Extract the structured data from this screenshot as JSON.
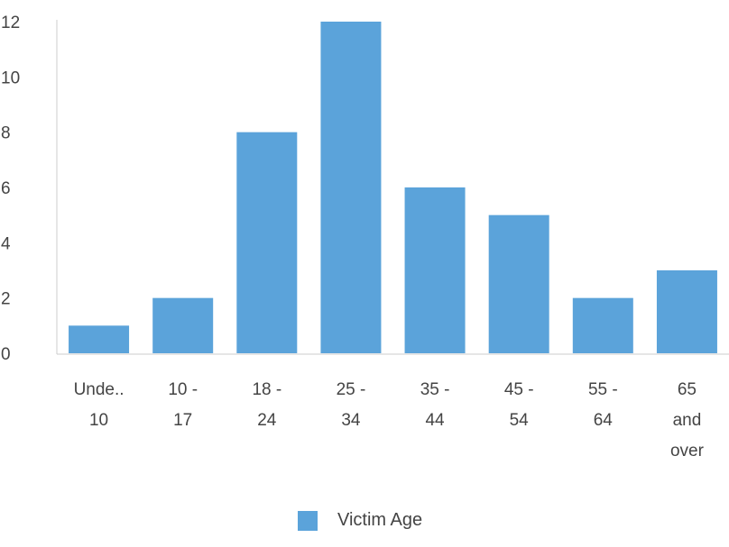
{
  "chart_data": {
    "type": "bar",
    "categories": [
      [
        "Unde..",
        "10"
      ],
      [
        "10 -",
        "17"
      ],
      [
        "18 -",
        "24"
      ],
      [
        "25 -",
        "34"
      ],
      [
        "35 -",
        "44"
      ],
      [
        "45 -",
        "54"
      ],
      [
        "55 -",
        "64"
      ],
      [
        "65",
        "and",
        "over"
      ]
    ],
    "series": [
      {
        "name": "Victim Age",
        "values": [
          1,
          2,
          8,
          12,
          6,
          5,
          2,
          3
        ],
        "color": "#5ba3da"
      }
    ],
    "yticks": [
      "0",
      "2",
      "4",
      "6",
      "8",
      "10",
      "12"
    ],
    "ylim": [
      0,
      12
    ],
    "legend_position": "bottom",
    "grid": false
  }
}
